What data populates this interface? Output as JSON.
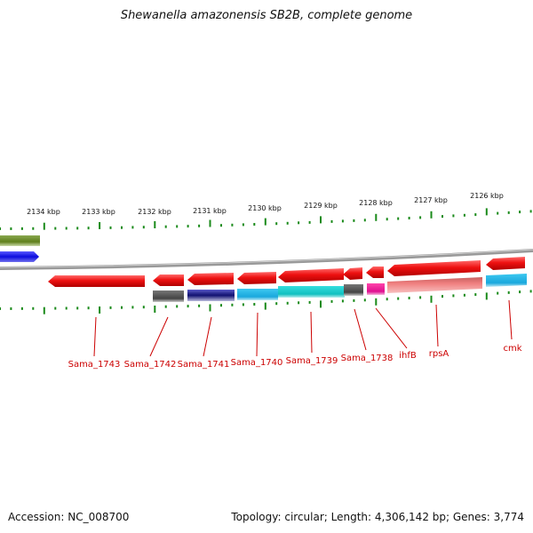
{
  "title": "Shewanella amazonensis SB2B, complete genome",
  "footer": {
    "accession": "Accession: NC_008700",
    "summary": "Topology: circular; Length: 4,306,142 bp; Genes: 3,774"
  },
  "scale_labels": [
    "2134 kbp",
    "2133 kbp",
    "2132 kbp",
    "2131 kbp",
    "2130 kbp",
    "2129 kbp",
    "2128 kbp",
    "2127 kbp",
    "2126 kbp"
  ],
  "genes": [
    {
      "name": "Sama_1743"
    },
    {
      "name": "Sama_1742"
    },
    {
      "name": "Sama_1741"
    },
    {
      "name": "Sama_1740"
    },
    {
      "name": "Sama_1739"
    },
    {
      "name": "Sama_1738"
    },
    {
      "name": "ihfB"
    },
    {
      "name": "rpsA"
    },
    {
      "name": "cmk"
    }
  ],
  "colors": {
    "cds": "#ee1111",
    "tick": "#1a8a1a",
    "backbone": "#888888",
    "label": "#cc0000",
    "olive": "#6b8e23",
    "blue": "#1010e0",
    "gray": "#555555",
    "navy": "#1a1a7a",
    "cyan": "#1ab0e0",
    "teal": "#12c8c8",
    "magenta": "#ee1199",
    "salmon": "#f08080"
  }
}
